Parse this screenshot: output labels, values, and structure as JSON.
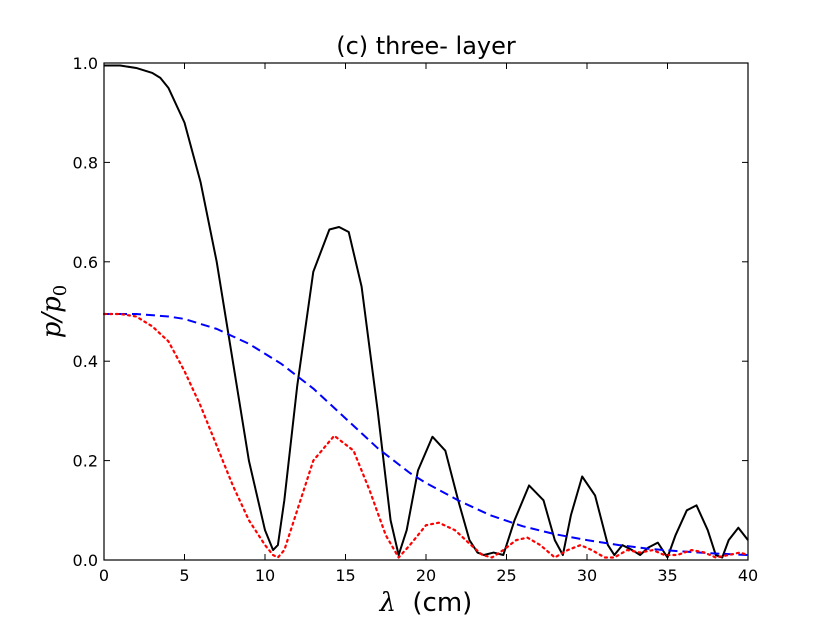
{
  "chart_data": {
    "type": "line",
    "title": "(c) three- layer",
    "xlabel_symbol": "λ",
    "xlabel_unit": "(cm)",
    "ylabel_main": "p/p",
    "ylabel_sub": "0",
    "xlim": [
      0,
      40
    ],
    "ylim": [
      0,
      1.0
    ],
    "xticks": [
      0,
      5,
      10,
      15,
      20,
      25,
      30,
      35,
      40
    ],
    "xtick_labels": [
      "0",
      "5",
      "10",
      "15",
      "20",
      "25",
      "30",
      "35",
      "40"
    ],
    "yticks": [
      0,
      0.2,
      0.4,
      0.6,
      0.8,
      1.0
    ],
    "ytick_labels": [
      "0.0",
      "0.2",
      "0.4",
      "0.6",
      "0.8",
      "1.0"
    ],
    "grid": false,
    "legend": false,
    "series": [
      {
        "style": "solid",
        "color": "#000000",
        "x": [
          0,
          1,
          2,
          3,
          3.5,
          4,
          5,
          6,
          7,
          8,
          9,
          10,
          10.5,
          10.8,
          11.2,
          12,
          13,
          14,
          14.6,
          15.2,
          16,
          17,
          17.8,
          18.3,
          18.8,
          19.5,
          20.4,
          21.2,
          22,
          22.7,
          23.2,
          23.6,
          24.2,
          24.8,
          25.5,
          26.4,
          27.3,
          28,
          28.5,
          29,
          29.7,
          30.5,
          31.3,
          31.7,
          32.2,
          32.8,
          33.3,
          33.8,
          34.4,
          35,
          35.5,
          36.2,
          36.8,
          37.5,
          38,
          38.4,
          38.8,
          39.4,
          40
        ],
        "y": [
          0.995,
          0.995,
          0.99,
          0.98,
          0.97,
          0.95,
          0.88,
          0.76,
          0.6,
          0.4,
          0.2,
          0.06,
          0.02,
          0.03,
          0.12,
          0.35,
          0.58,
          0.665,
          0.67,
          0.66,
          0.55,
          0.3,
          0.08,
          0.01,
          0.06,
          0.18,
          0.248,
          0.22,
          0.12,
          0.04,
          0.015,
          0.01,
          0.015,
          0.01,
          0.08,
          0.15,
          0.12,
          0.04,
          0.01,
          0.09,
          0.168,
          0.13,
          0.03,
          0.01,
          0.03,
          0.02,
          0.01,
          0.025,
          0.035,
          0.005,
          0.05,
          0.1,
          0.11,
          0.06,
          0.01,
          0.005,
          0.04,
          0.065,
          0.04
        ]
      },
      {
        "style": "dashed",
        "color": "#0000ff",
        "x": [
          0,
          2,
          4,
          5,
          6,
          7,
          8,
          9,
          10,
          11,
          12,
          13,
          14,
          15,
          16,
          17,
          18,
          19,
          20,
          22,
          24,
          26,
          28,
          30,
          32,
          34,
          36,
          38,
          40
        ],
        "y": [
          0.495,
          0.495,
          0.49,
          0.485,
          0.475,
          0.465,
          0.45,
          0.435,
          0.415,
          0.395,
          0.37,
          0.345,
          0.315,
          0.285,
          0.255,
          0.225,
          0.2,
          0.175,
          0.155,
          0.12,
          0.09,
          0.068,
          0.052,
          0.04,
          0.03,
          0.022,
          0.017,
          0.013,
          0.01
        ]
      },
      {
        "style": "dotted",
        "color": "#ff0000",
        "x": [
          0,
          1,
          2,
          3,
          4,
          5,
          6,
          7,
          8,
          9,
          10,
          10.5,
          10.8,
          11.2,
          12,
          13,
          14.3,
          15.5,
          16.5,
          17.5,
          18.3,
          19,
          20,
          20.8,
          21.8,
          22.8,
          23.5,
          24.1,
          24.8,
          25.6,
          26.3,
          27.1,
          28,
          28.8,
          29.6,
          30.3,
          31.1,
          31.7,
          32.5,
          33.3,
          34.1,
          34.8,
          35.6,
          36.5,
          37.3,
          38,
          38.8,
          39.5,
          40
        ],
        "y": [
          0.495,
          0.495,
          0.49,
          0.47,
          0.44,
          0.38,
          0.31,
          0.23,
          0.15,
          0.08,
          0.03,
          0.01,
          0.005,
          0.02,
          0.1,
          0.2,
          0.25,
          0.22,
          0.14,
          0.05,
          0.005,
          0.03,
          0.07,
          0.075,
          0.06,
          0.03,
          0.01,
          0.005,
          0.02,
          0.04,
          0.045,
          0.03,
          0.005,
          0.02,
          0.03,
          0.02,
          0.005,
          0.005,
          0.02,
          0.015,
          0.02,
          0.01,
          0.01,
          0.02,
          0.015,
          0.005,
          0.01,
          0.015,
          0.01
        ]
      }
    ]
  }
}
